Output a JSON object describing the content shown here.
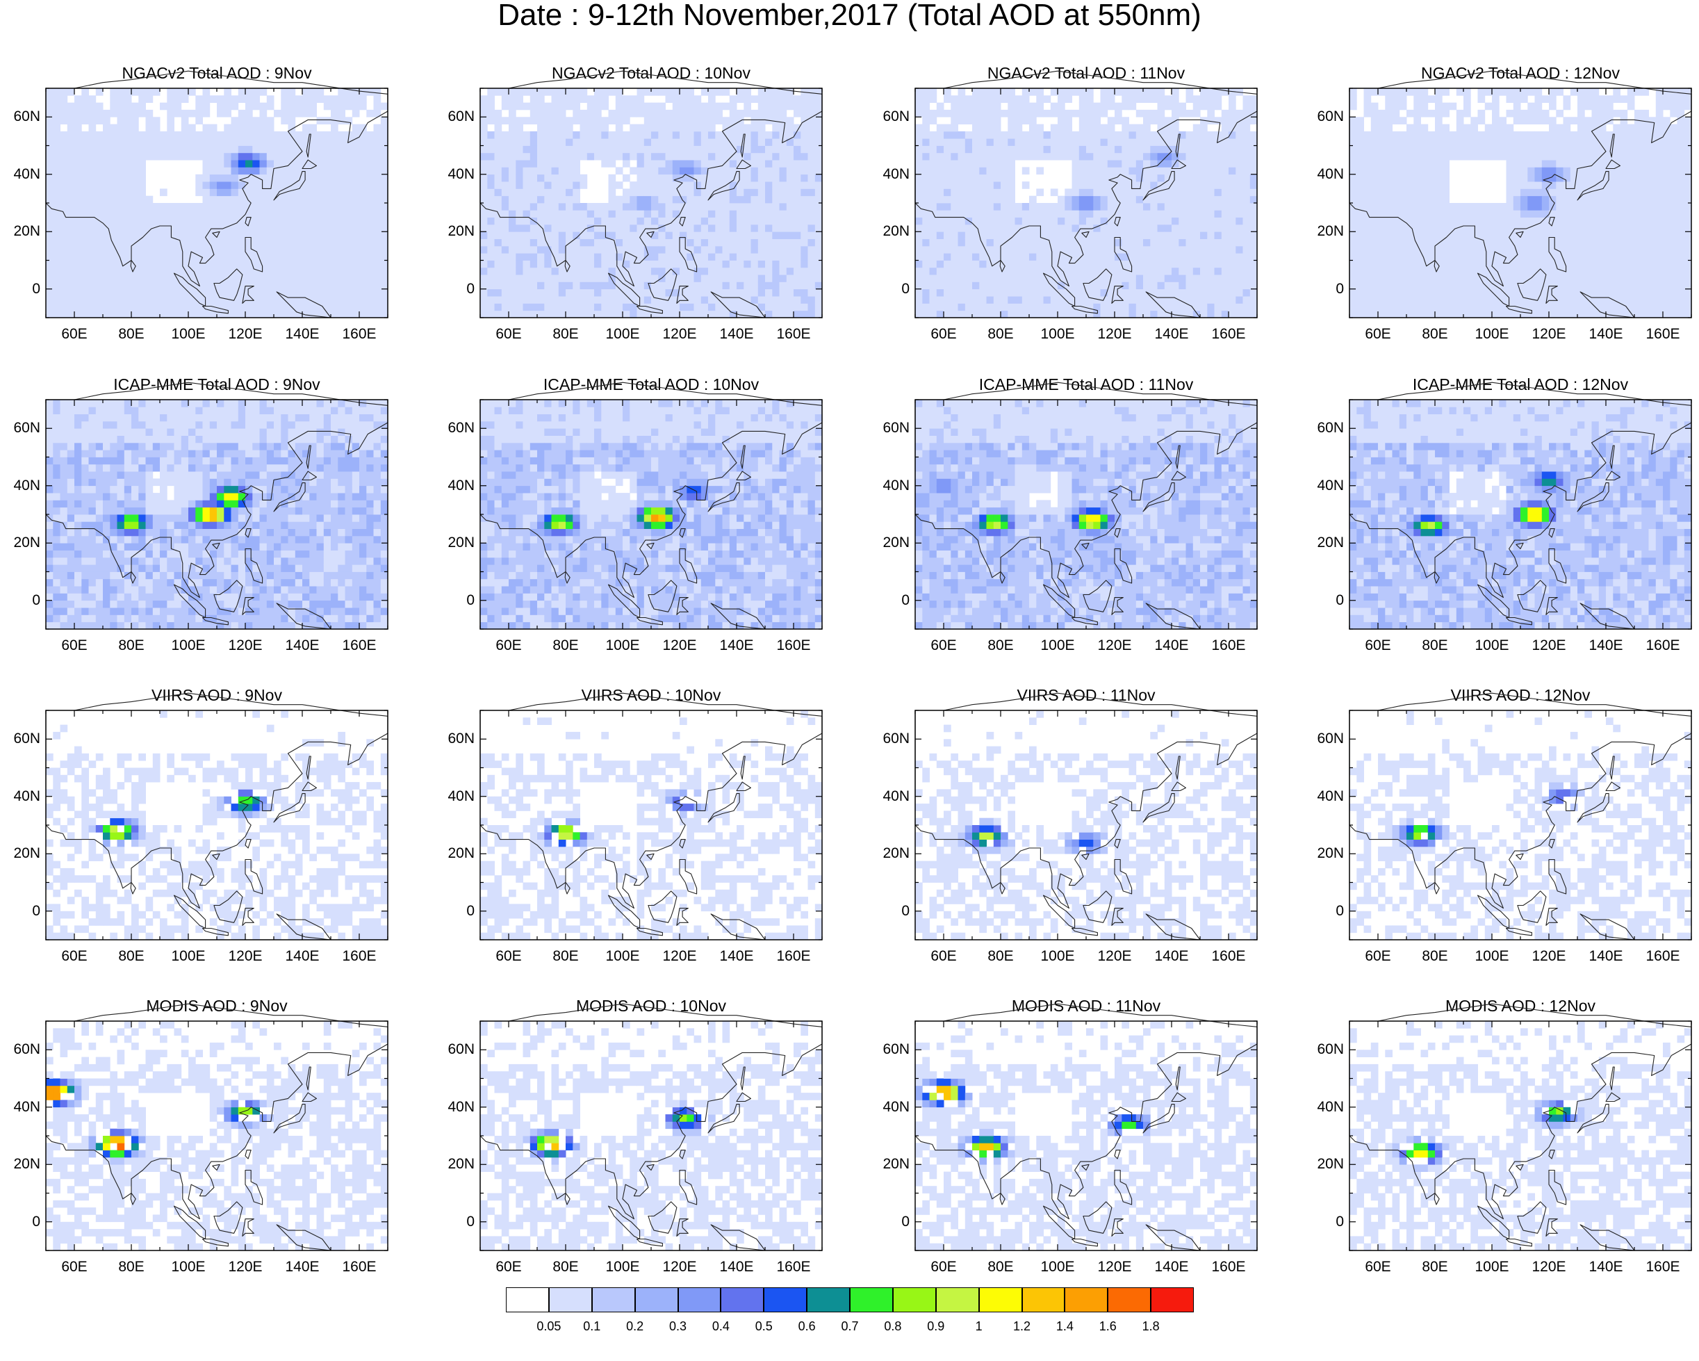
{
  "title": "Date : 9-12th November,2017 (Total AOD at 550nm)",
  "colors": {
    "ocean_background": "#ffffff",
    "coastline": "#222222",
    "palette": [
      "#ffffff",
      "#d6dffd",
      "#b9c8fc",
      "#9cb2fa",
      "#8099f7",
      "#6273ee",
      "#1b55f2",
      "#0d8f94",
      "#2ff12a",
      "#98f616",
      "#c5f542",
      "#fdfc05",
      "#fcc505",
      "#fc9f03",
      "#fb6a03",
      "#f61b0d"
    ]
  },
  "panels": [
    {
      "title": "NGACv2 Total AOD : 9Nov",
      "level": 1.0,
      "hotspots": [
        {
          "lon": 121,
          "lat": 44,
          "level": 7
        },
        {
          "lon": 112,
          "lat": 36,
          "level": 4
        }
      ]
    },
    {
      "title": "NGACv2 Total AOD : 10Nov",
      "level": 1.2,
      "hotspots": [
        {
          "lon": 122,
          "lat": 42,
          "level": 4
        },
        {
          "lon": 108,
          "lat": 30,
          "level": 3
        }
      ]
    },
    {
      "title": "NGACv2 Total AOD : 11Nov",
      "level": 1.1,
      "hotspots": [
        {
          "lon": 138,
          "lat": 46,
          "level": 4
        },
        {
          "lon": 110,
          "lat": 30,
          "level": 4
        }
      ]
    },
    {
      "title": "NGACv2 Total AOD : 12Nov",
      "level": 1.0,
      "hotspots": [
        {
          "lon": 115,
          "lat": 30,
          "level": 5
        },
        {
          "lon": 120,
          "lat": 40,
          "level": 4
        }
      ]
    },
    {
      "title": "ICAP-MME Total AOD : 9Nov",
      "level": 2.0,
      "hotspots": [
        {
          "lon": 80,
          "lat": 27,
          "level": 10
        },
        {
          "lon": 115,
          "lat": 36,
          "level": 11
        },
        {
          "lon": 108,
          "lat": 30,
          "level": 13
        }
      ]
    },
    {
      "title": "ICAP-MME Total AOD : 10Nov",
      "level": 2.0,
      "hotspots": [
        {
          "lon": 78,
          "lat": 27,
          "level": 10
        },
        {
          "lon": 112,
          "lat": 29,
          "level": 13
        },
        {
          "lon": 125,
          "lat": 38,
          "level": 6
        }
      ]
    },
    {
      "title": "ICAP-MME Total AOD : 11Nov",
      "level": 2.0,
      "hotspots": [
        {
          "lon": 78,
          "lat": 27,
          "level": 10
        },
        {
          "lon": 112,
          "lat": 28,
          "level": 12
        },
        {
          "lon": 60,
          "lat": 40,
          "level": 5
        }
      ]
    },
    {
      "title": "ICAP-MME Total AOD : 12Nov",
      "level": 2.0,
      "hotspots": [
        {
          "lon": 78,
          "lat": 26,
          "level": 10
        },
        {
          "lon": 115,
          "lat": 30,
          "level": 12
        },
        {
          "lon": 120,
          "lat": 42,
          "level": 7
        }
      ]
    },
    {
      "title": "VIIRS AOD : 9Nov",
      "level": 0.6,
      "hotspots": [
        {
          "lon": 75,
          "lat": 28,
          "level": 11
        },
        {
          "lon": 120,
          "lat": 38,
          "level": 9
        }
      ]
    },
    {
      "title": "VIIRS AOD : 10Nov",
      "level": 0.6,
      "hotspots": [
        {
          "lon": 80,
          "lat": 27,
          "level": 11
        },
        {
          "lon": 122,
          "lat": 38,
          "level": 6
        }
      ]
    },
    {
      "title": "VIIRS AOD : 11Nov",
      "level": 0.6,
      "hotspots": [
        {
          "lon": 75,
          "lat": 26,
          "level": 10
        },
        {
          "lon": 110,
          "lat": 24,
          "level": 6
        }
      ]
    },
    {
      "title": "VIIRS AOD : 12Nov",
      "level": 0.6,
      "hotspots": [
        {
          "lon": 75,
          "lat": 27,
          "level": 10
        },
        {
          "lon": 125,
          "lat": 40,
          "level": 6
        }
      ]
    },
    {
      "title": "MODIS AOD : 9Nov",
      "level": 0.7,
      "hotspots": [
        {
          "lon": 75,
          "lat": 27,
          "level": 15
        },
        {
          "lon": 120,
          "lat": 38,
          "level": 10
        },
        {
          "lon": 53,
          "lat": 45,
          "level": 15
        }
      ]
    },
    {
      "title": "MODIS AOD : 10Nov",
      "level": 0.7,
      "hotspots": [
        {
          "lon": 75,
          "lat": 27,
          "level": 13
        },
        {
          "lon": 122,
          "lat": 36,
          "level": 9
        }
      ]
    },
    {
      "title": "MODIS AOD : 11Nov",
      "level": 0.7,
      "hotspots": [
        {
          "lon": 75,
          "lat": 26,
          "level": 12
        },
        {
          "lon": 125,
          "lat": 34,
          "level": 8
        },
        {
          "lon": 60,
          "lat": 45,
          "level": 14
        }
      ]
    },
    {
      "title": "MODIS AOD : 12Nov",
      "level": 0.7,
      "hotspots": [
        {
          "lon": 75,
          "lat": 24,
          "level": 11
        },
        {
          "lon": 123,
          "lat": 38,
          "level": 9
        }
      ]
    }
  ],
  "lat_ticks": [
    "60N",
    "40N",
    "20N",
    "0"
  ],
  "lon_ticks": [
    "60E",
    "80E",
    "100E",
    "120E",
    "140E",
    "160E"
  ],
  "colorbar": {
    "labels": [
      "0.05",
      "0.1",
      "0.2",
      "0.3",
      "0.4",
      "0.5",
      "0.6",
      "0.7",
      "0.8",
      "0.9",
      "1",
      "1.2",
      "1.4",
      "1.6",
      "1.8"
    ]
  }
}
